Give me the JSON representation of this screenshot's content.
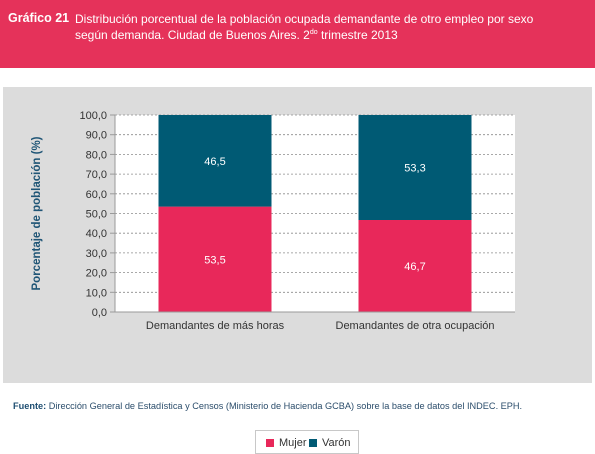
{
  "figure": {
    "label": "Gráfico 21",
    "title_line1": "Distribución porcentual de la población ocupada demandante de otro empleo por sexo",
    "title_line2_before": "según demanda. Ciudad de Buenos Aires. 2",
    "title_sup": "do",
    "title_line2_after": " trimestre 2013"
  },
  "source": {
    "label": "Fuente:",
    "text": " Dirección General de Estadística y Censos (Ministerio de Hacienda GCBA) sobre la base de datos del INDEC. EPH."
  },
  "colors": {
    "header_bg": "#e5325a",
    "mujer": "#e8285a",
    "varon": "#005a74",
    "plot_bg": "#ffffff",
    "panel_bg": "#dcdcdc",
    "axis_label": "#1f5576"
  },
  "chart_data": {
    "type": "bar",
    "stacked": true,
    "categories": [
      "Demandantes de más horas",
      "Demandantes de otra ocupación"
    ],
    "series": [
      {
        "name": "Mujer",
        "values": [
          53.5,
          46.7
        ],
        "labels": [
          "53,5",
          "46,7"
        ],
        "color": "#e8285a"
      },
      {
        "name": "Varón",
        "values": [
          46.5,
          53.3
        ],
        "labels": [
          "46,5",
          "53,3"
        ],
        "color": "#005a74"
      }
    ],
    "ylabel": "Porcentaje de población (%)",
    "xlabel": "",
    "ylim": [
      0,
      100
    ],
    "yticks": [
      0,
      10,
      20,
      30,
      40,
      50,
      60,
      70,
      80,
      90,
      100
    ],
    "ytick_labels": [
      "0,0",
      "10,0",
      "20,0",
      "30,0",
      "40,0",
      "50,0",
      "60,0",
      "70,0",
      "80,0",
      "90,0",
      "100,0"
    ],
    "grid": true,
    "legend": "bottom-center"
  }
}
